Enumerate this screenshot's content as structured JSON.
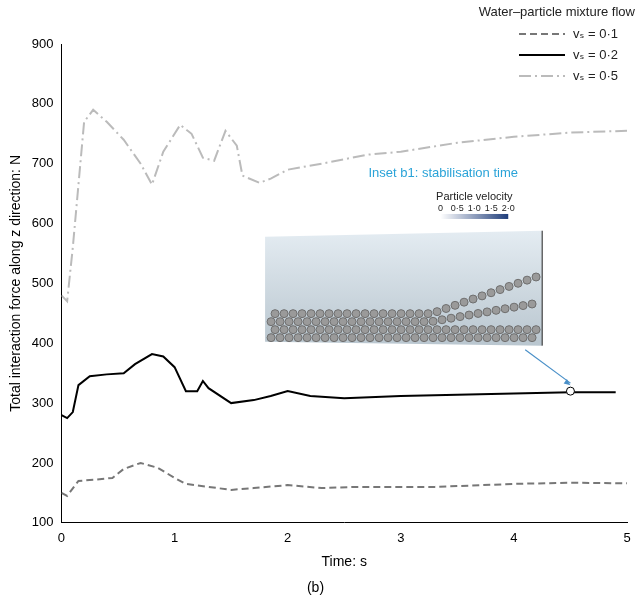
{
  "chart_data": {
    "type": "line",
    "subtitle": "(b)",
    "x_label": "Time: s",
    "y_label": "Total interaction force along z direction: N",
    "legend": "upper right",
    "legend_title": "Water–particle mixture flow",
    "grid": false,
    "xlim": [
      0,
      5
    ],
    "xticks": [
      0,
      1,
      2,
      3,
      4,
      5
    ],
    "ylim": [
      100,
      900
    ],
    "yticks": [
      100,
      200,
      300,
      400,
      500,
      600,
      700,
      800,
      900
    ],
    "series": [
      {
        "name": "vₛ = 0·1",
        "color": "#777777",
        "line_style": "dashed",
        "x": [
          0,
          0.05,
          0.15,
          0.3,
          0.45,
          0.55,
          0.7,
          0.85,
          1.0,
          1.1,
          1.3,
          1.5,
          1.7,
          2.0,
          2.3,
          2.6,
          3.0,
          3.3,
          3.6,
          4.0,
          4.5,
          5.0
        ],
        "values": [
          150,
          145,
          170,
          172,
          175,
          190,
          200,
          192,
          175,
          165,
          160,
          155,
          158,
          163,
          158,
          160,
          160,
          160,
          162,
          165,
          167,
          166
        ]
      },
      {
        "name": "vₛ = 0·2",
        "color": "#000000",
        "line_style": "solid",
        "x": [
          0,
          0.05,
          0.1,
          0.15,
          0.25,
          0.4,
          0.55,
          0.65,
          0.8,
          0.9,
          1.0,
          1.1,
          1.2,
          1.25,
          1.3,
          1.5,
          1.7,
          1.85,
          2.0,
          2.2,
          2.5,
          3.0,
          3.5,
          4.0,
          4.5,
          4.9
        ],
        "values": [
          280,
          275,
          285,
          330,
          345,
          348,
          350,
          365,
          382,
          378,
          360,
          320,
          320,
          337,
          325,
          300,
          305,
          312,
          320,
          312,
          308,
          312,
          314,
          316,
          318,
          318
        ]
      },
      {
        "name": "vₛ = 0·5",
        "color": "#bbbbbb",
        "line_style": "dashdot",
        "x": [
          0,
          0.05,
          0.1,
          0.2,
          0.28,
          0.4,
          0.55,
          0.7,
          0.8,
          0.9,
          1.05,
          1.15,
          1.25,
          1.35,
          1.45,
          1.55,
          1.6,
          1.75,
          1.85,
          2.0,
          2.3,
          2.7,
          3.0,
          3.5,
          4.0,
          4.5,
          5.0
        ],
        "values": [
          480,
          470,
          560,
          770,
          790,
          770,
          740,
          700,
          665,
          720,
          765,
          750,
          710,
          705,
          755,
          730,
          680,
          668,
          675,
          690,
          700,
          715,
          720,
          735,
          745,
          752,
          755
        ]
      }
    ],
    "annotations": [
      {
        "text": "Inset b1: stabilisation time",
        "x": 4.5,
        "y": 320
      }
    ],
    "colorbar": {
      "label": "Particle velocity",
      "range": [
        0,
        2
      ],
      "ticks": [
        0,
        {
          "value": 0.5,
          "label": "0·5"
        },
        {
          "value": 1,
          "label": "1·0"
        },
        {
          "value": 1.5,
          "label": "1·5"
        },
        {
          "value": 2,
          "label": "2·0"
        }
      ]
    }
  }
}
